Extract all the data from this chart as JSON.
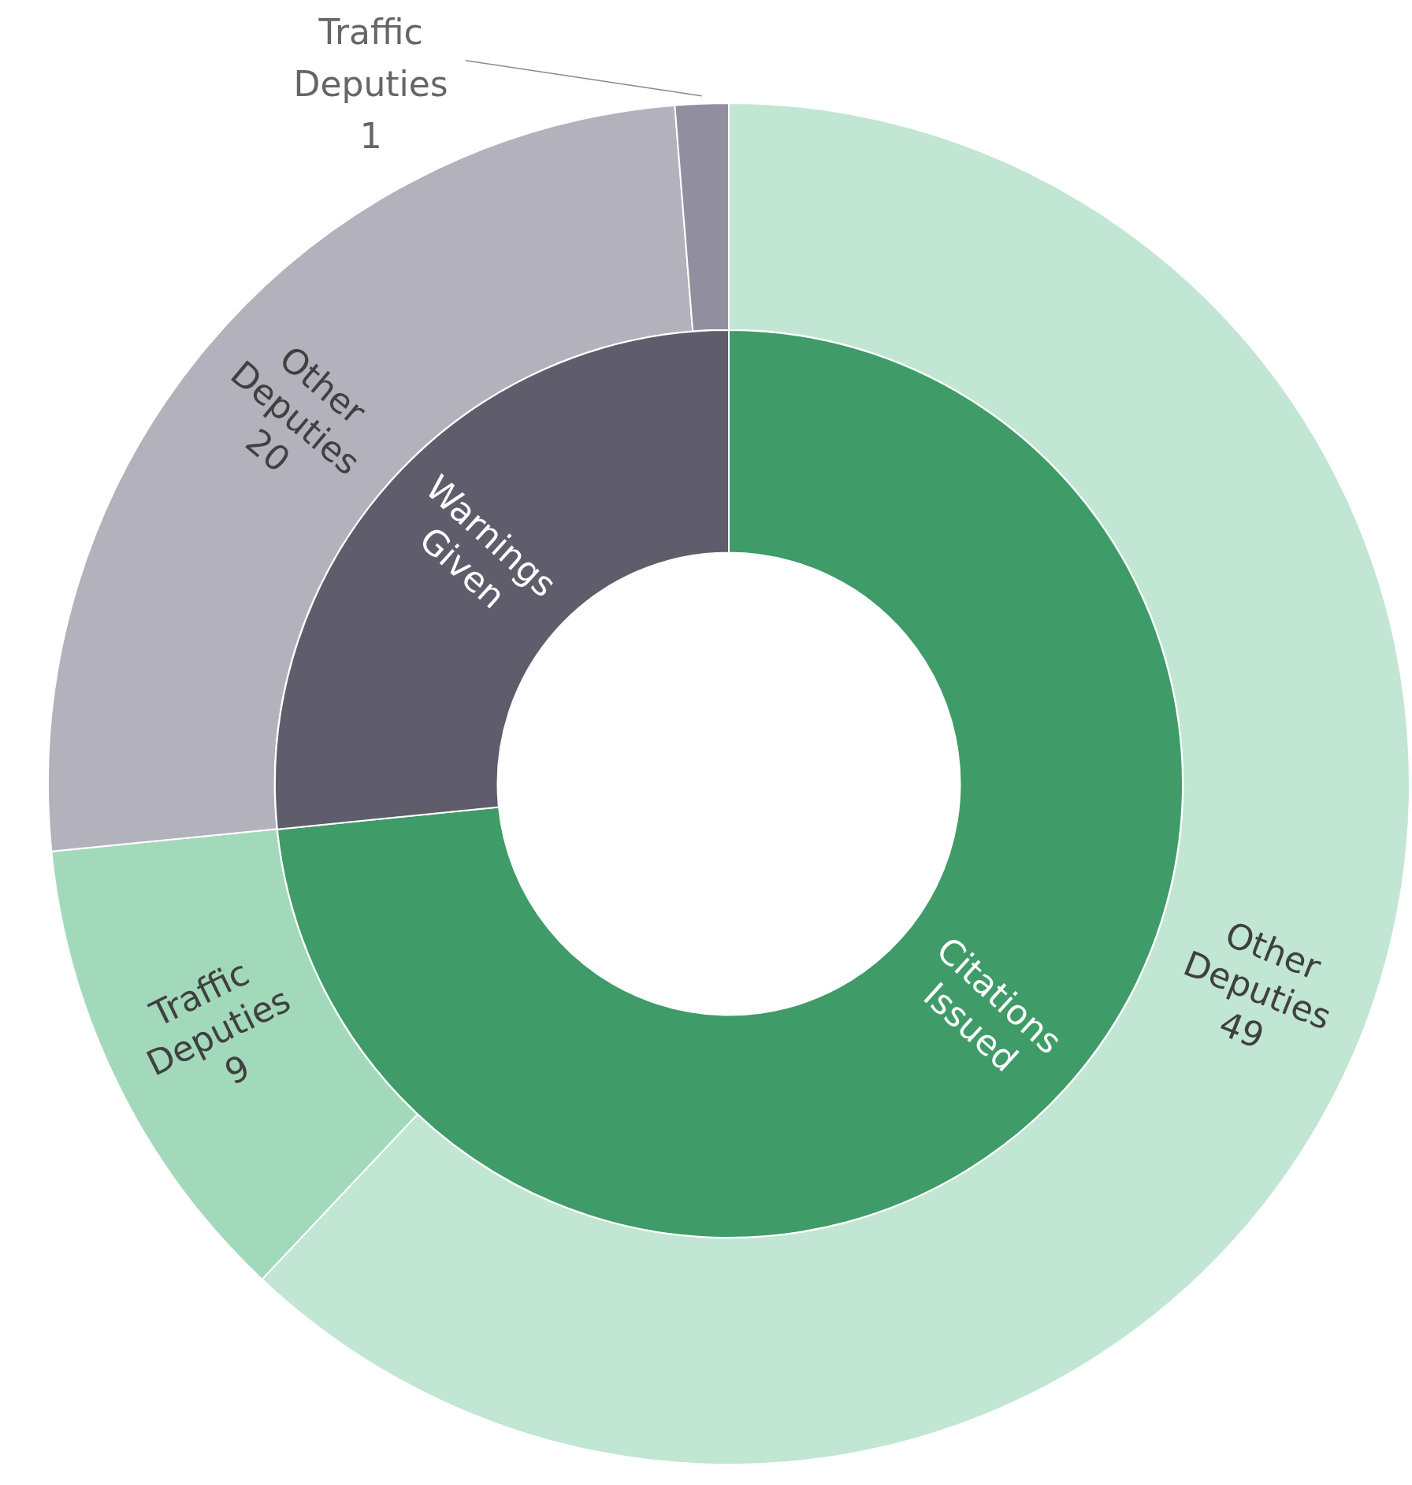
{
  "chart_data": [
    {
      "type": "donut",
      "data_labels": true,
      "categories": [
        "Other Deputies",
        "Traffic Deputies",
        "Other Deputies",
        "Traffic Deputies"
      ],
      "values": [
        49,
        9,
        20,
        1
      ],
      "colors": [
        "#c1e6d3",
        "#a3d9bb",
        "#b3b1bc",
        "#918f9f"
      ]
    },
    {
      "type": "donut",
      "categories": [
        "Citations Issued",
        "Warnings Given"
      ],
      "values": [
        73.4,
        26.6
      ],
      "colors": [
        "#3f9b67",
        "#5f5c6b"
      ]
    }
  ]
}
